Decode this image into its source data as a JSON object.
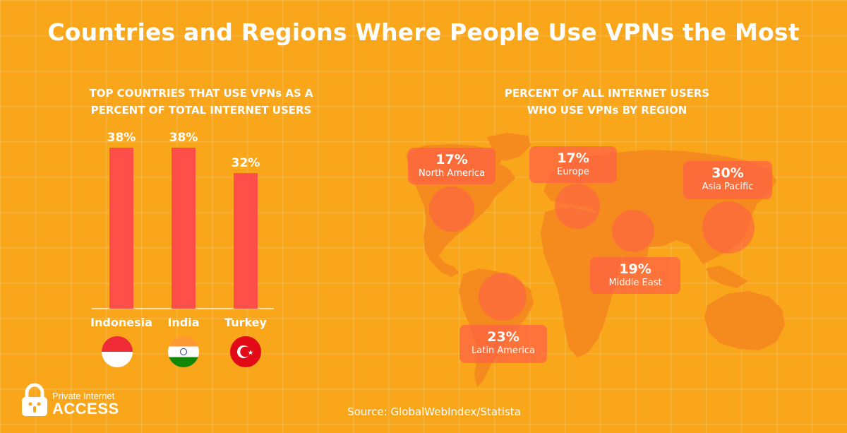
{
  "title": "Countries and Regions Where People Use VPNs the Most",
  "colors": {
    "background": "#f9a61a",
    "bar": "#ff4f48",
    "map": "#f58b1e",
    "bubble": "#ff5f46",
    "text": "#ffffff"
  },
  "chart_data": [
    {
      "type": "bar",
      "title": "TOP COUNTRIES THAT USE VPNs AS A PERCENT OF TOTAL INTERNET USERS",
      "title_lines": [
        "TOP COUNTRIES THAT USE VPNs AS A",
        "PERCENT OF TOTAL INTERNET USERS"
      ],
      "categories": [
        "Indonesia",
        "India",
        "Turkey"
      ],
      "values": [
        38,
        38,
        32
      ],
      "data_labels": [
        "38%",
        "38%",
        "32%"
      ],
      "flags": [
        "indonesia-flag-icon",
        "india-flag-icon",
        "turkey-flag-icon"
      ],
      "unit": "%",
      "ylim": [
        0,
        38
      ],
      "grid": false
    },
    {
      "type": "map",
      "title": "PERCENT OF ALL INTERNET USERS WHO USE VPNs BY REGION",
      "title_lines": [
        "PERCENT OF ALL INTERNET USERS",
        "WHO USE VPNs BY REGION"
      ],
      "regions": [
        {
          "name": "North America",
          "value": 17,
          "label": "17%"
        },
        {
          "name": "Europe",
          "value": 17,
          "label": "17%"
        },
        {
          "name": "Asia Pacific",
          "value": 30,
          "label": "30%"
        },
        {
          "name": "Middle East",
          "value": 19,
          "label": "19%"
        },
        {
          "name": "Latin America",
          "value": 23,
          "label": "23%"
        }
      ]
    }
  ],
  "source": "Source: GlobalWebIndex/Statista",
  "logo": {
    "line1": "Private Internet",
    "line2": "ACCESS"
  }
}
